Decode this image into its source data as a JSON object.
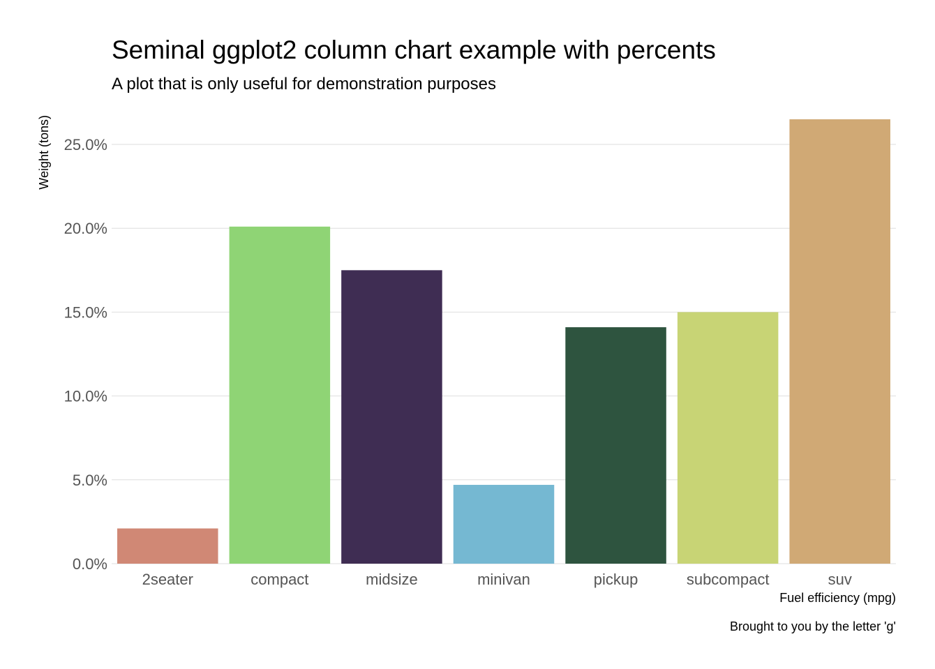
{
  "chart_data": {
    "type": "bar",
    "title": "Seminal ggplot2 column chart example with percents",
    "subtitle": "A plot that is only useful for demonstration purposes",
    "caption": "Brought to you by the letter 'g'",
    "xlabel": "Fuel efficiency (mpg)",
    "ylabel": "Weight (tons)",
    "categories": [
      "2seater",
      "compact",
      "midsize",
      "minivan",
      "pickup",
      "subcompact",
      "suv"
    ],
    "values": [
      2.1,
      20.1,
      17.5,
      4.7,
      14.1,
      15.0,
      26.5
    ],
    "colors": [
      "#D08875",
      "#8FD475",
      "#3F2D53",
      "#75B8D2",
      "#2E543F",
      "#C8D475",
      "#D0A975"
    ],
    "ylim": [
      0,
      26.5
    ],
    "yticks": [
      0,
      5,
      10,
      15,
      20,
      25
    ],
    "ytick_labels": [
      "0.0%",
      "5.0%",
      "10.0%",
      "15.0%",
      "20.0%",
      "25.0%"
    ],
    "grid": "horizontal",
    "legend": "none"
  }
}
